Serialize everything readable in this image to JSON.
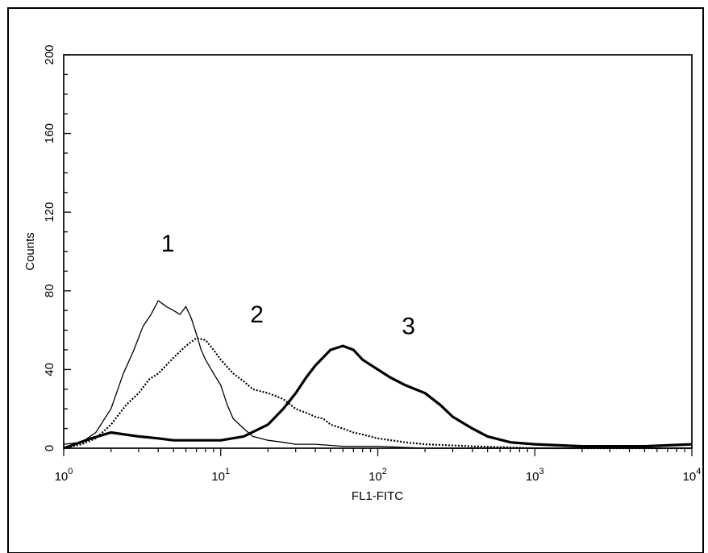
{
  "chart_data": {
    "type": "line",
    "xlabel": "FL1-FITC",
    "ylabel": "Counts",
    "x_scale": "log",
    "xlim": [
      1,
      10000
    ],
    "ylim": [
      0,
      200
    ],
    "x_ticks": [
      {
        "base": "10",
        "exp": "0",
        "value": 1
      },
      {
        "base": "10",
        "exp": "1",
        "value": 10
      },
      {
        "base": "10",
        "exp": "2",
        "value": 100
      },
      {
        "base": "10",
        "exp": "3",
        "value": 1000
      },
      {
        "base": "10",
        "exp": "4",
        "value": 10000
      }
    ],
    "y_ticks": [
      {
        "label": "0",
        "value": 0
      },
      {
        "label": "40",
        "value": 40
      },
      {
        "label": "80",
        "value": 80
      },
      {
        "label": "120",
        "value": 120
      },
      {
        "label": "160",
        "value": 160
      },
      {
        "label": "200",
        "value": 200
      }
    ],
    "grid": false,
    "legend": "none",
    "annotations": [
      {
        "text": "1",
        "x": 4.6,
        "y": 100
      },
      {
        "text": "2",
        "x": 17,
        "y": 64
      },
      {
        "text": "3",
        "x": 157,
        "y": 58
      }
    ],
    "series": [
      {
        "label": "1",
        "style": "thin-solid",
        "x": [
          1,
          1.3,
          1.6,
          2,
          2.4,
          2.8,
          3.2,
          3.6,
          4,
          4.5,
          5,
          5.5,
          6,
          6.5,
          7,
          7.5,
          8,
          9,
          10,
          11,
          12,
          14,
          16,
          20,
          25,
          30,
          40,
          60,
          100,
          200,
          500,
          1000,
          10000
        ],
        "y": [
          2,
          3,
          8,
          20,
          38,
          50,
          62,
          68,
          75,
          72,
          70,
          68,
          72,
          66,
          58,
          50,
          45,
          38,
          32,
          22,
          15,
          10,
          6,
          4,
          3,
          2,
          2,
          1,
          1,
          0,
          0,
          0,
          0
        ]
      },
      {
        "label": "2",
        "style": "dotted",
        "x": [
          1,
          1.3,
          1.6,
          2,
          2.5,
          3,
          3.5,
          4,
          5,
          6,
          7,
          8,
          9,
          10,
          12,
          14,
          16,
          20,
          25,
          30,
          35,
          40,
          45,
          50,
          60,
          70,
          80,
          100,
          150,
          200,
          400,
          1000,
          10000
        ],
        "y": [
          0,
          2,
          5,
          12,
          22,
          28,
          35,
          38,
          46,
          52,
          56,
          55,
          50,
          45,
          38,
          34,
          30,
          28,
          25,
          20,
          18,
          16,
          15,
          12,
          10,
          8,
          7,
          5,
          3,
          2,
          1,
          0,
          0
        ]
      },
      {
        "label": "3",
        "style": "thick-solid",
        "x": [
          1,
          1.5,
          2,
          3,
          4,
          5,
          7,
          10,
          14,
          20,
          25,
          30,
          35,
          40,
          50,
          60,
          70,
          80,
          100,
          120,
          150,
          200,
          250,
          300,
          400,
          500,
          700,
          1000,
          2000,
          5000,
          10000
        ],
        "y": [
          0,
          5,
          8,
          6,
          5,
          4,
          4,
          4,
          6,
          12,
          20,
          28,
          36,
          42,
          50,
          52,
          50,
          45,
          40,
          36,
          32,
          28,
          22,
          16,
          10,
          6,
          3,
          2,
          1,
          1,
          2
        ]
      }
    ]
  }
}
